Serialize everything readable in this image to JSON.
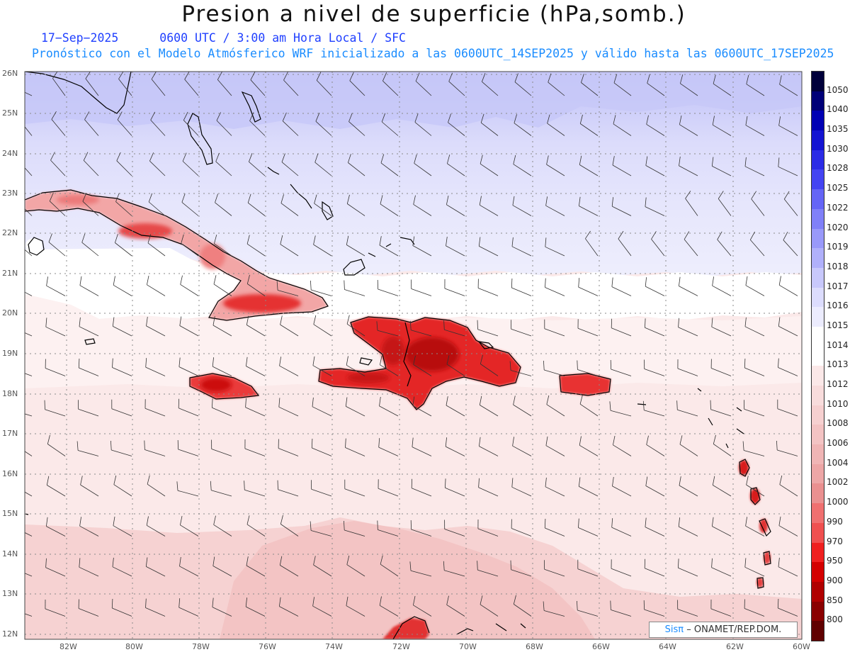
{
  "header": {
    "title": "Presion a nivel de superficie (hPa,somb.)",
    "date": "17−Sep−2025",
    "time_info": "0600 UTC / 3:00 am Hora Local / SFC",
    "forecast_info": "Pronóstico con el Modelo Atmósferico WRF inicializado a las 0600UTC_14SEP2025 y válido hasta las  0600UTC_17SEP2025"
  },
  "map": {
    "lat_labels": [
      "26N",
      "25N",
      "24N",
      "23N",
      "22N",
      "21N",
      "20N",
      "19N",
      "18N",
      "17N",
      "16N",
      "15N",
      "14N",
      "13N",
      "12N"
    ],
    "lon_labels": [
      "82W",
      "80W",
      "78W",
      "76W",
      "74W",
      "72W",
      "70W",
      "68W",
      "66W",
      "64W",
      "62W",
      "60W"
    ],
    "lat_range": [
      26,
      12
    ],
    "lon_range": [
      -83.2,
      -60
    ],
    "grid": "dotted",
    "overlay": "wind barbs"
  },
  "colorbar": {
    "levels": [
      "1050",
      "1040",
      "1035",
      "1030",
      "1028",
      "1025",
      "1022",
      "1020",
      "1019",
      "1018",
      "1017",
      "1016",
      "1015",
      "1014",
      "1013",
      "1012",
      "1010",
      "1008",
      "1006",
      "1004",
      "1002",
      "1000",
      "990",
      "970",
      "950",
      "900",
      "850",
      "800"
    ],
    "colors": [
      "#00003a",
      "#000078",
      "#0000b4",
      "#1414d2",
      "#2b2be6",
      "#4444f2",
      "#6565f6",
      "#8080f8",
      "#9999fa",
      "#b0b0fb",
      "#c8c8fc",
      "#dcdcfd",
      "#ececfe",
      "#ffffff",
      "#ffffff",
      "#fbe8e8",
      "#f8dcdc",
      "#f6d0d0",
      "#f3c3c3",
      "#f0b5b5",
      "#eda6a6",
      "#ea9090",
      "#f07070",
      "#f05050",
      "#f02020",
      "#d40000",
      "#b00000",
      "#8a0000",
      "#600000"
    ]
  },
  "credit": {
    "logo": "Sisπ",
    "text": "– ONAMET/REP.DOM."
  }
}
